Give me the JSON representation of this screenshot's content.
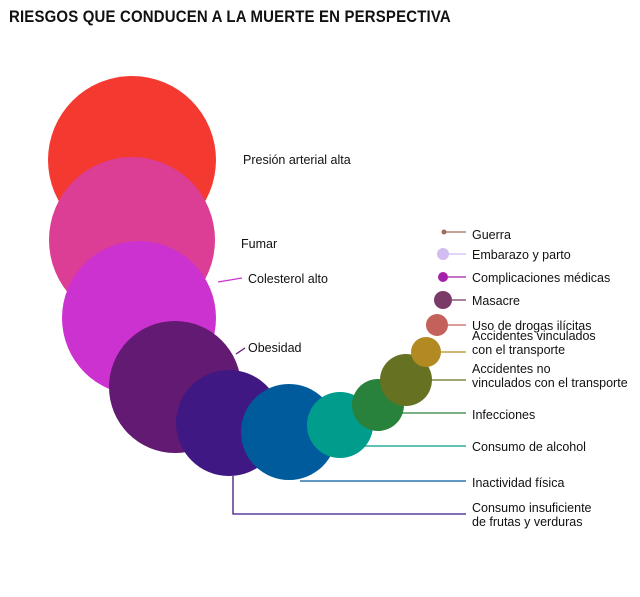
{
  "title": "RIESGOS QUE CONDUCEN A LA MUERTE EN PERSPECTIVA",
  "chart_data": {
    "type": "bubble",
    "title": "RIESGOS QUE CONDUCEN A LA MUERTE EN PERSPECTIVA",
    "legend": "none",
    "grid": false,
    "items": [
      {
        "label": [
          "Presión arterial alta"
        ],
        "color": "#f43a30"
      },
      {
        "label": [
          "Fumar"
        ],
        "color": "#dc3d95"
      },
      {
        "label": [
          "Colesterol alto"
        ],
        "color": "#cc32d0"
      },
      {
        "label": [
          "Obesidad"
        ],
        "color": "#631a72"
      },
      {
        "label": [
          "Consumo insuficiente",
          "de frutas y verduras"
        ],
        "color": "#3f1884"
      },
      {
        "label": [
          "Inactividad física"
        ],
        "color": "#005b9c"
      },
      {
        "label": [
          "Consumo de alcohol"
        ],
        "color": "#009c8c"
      },
      {
        "label": [
          "Infecciones"
        ],
        "color": "#29823b"
      },
      {
        "label": [
          "Accidentes no",
          "vinculados con el transporte"
        ],
        "color": "#667222"
      },
      {
        "label": [
          "Accidentes vinculados",
          "con el transporte"
        ],
        "color": "#b38a22"
      },
      {
        "label": [
          "Uso de drogas ilícitas"
        ],
        "color": "#c3615a"
      },
      {
        "label": [
          "Masacre"
        ],
        "color": "#7b3b68"
      },
      {
        "label": [
          "Complicaciones médicas"
        ],
        "color": "#a422a8"
      },
      {
        "label": [
          "Embarazo y parto"
        ],
        "color": "#d2bcf2"
      },
      {
        "label": [
          "Guerra"
        ],
        "color": "#a06b5b"
      }
    ]
  }
}
